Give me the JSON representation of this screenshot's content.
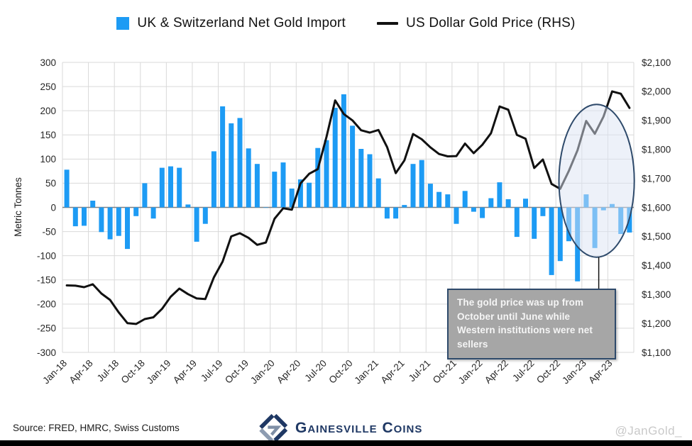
{
  "legend": {
    "bar_label": "UK & Switzerland Net Gold Import",
    "line_label": "US Dollar Gold Price (RHS)"
  },
  "colors": {
    "bar": "#1d9bf4",
    "line": "#111111",
    "grid": "#d9d9d9",
    "zero_line": "#7f7f7f",
    "ellipse_stroke": "#2e4a6b",
    "ellipse_fill": "rgba(219,228,243,0.5)",
    "callout_fill": "#a6a6a6",
    "callout_border": "#2e4a6b",
    "callout_text": "#f5f5f5",
    "brand_navy": "#1f3864",
    "brand_gray": "#8d9cb1",
    "watermark_gray": "#c9c9c9"
  },
  "chart_data": {
    "type": "bar+line",
    "title": "",
    "grid": true,
    "legend_position": "top",
    "categories": [
      "Jan-18",
      "Feb-18",
      "Mar-18",
      "Apr-18",
      "May-18",
      "Jun-18",
      "Jul-18",
      "Aug-18",
      "Sep-18",
      "Oct-18",
      "Nov-18",
      "Dec-18",
      "Jan-19",
      "Feb-19",
      "Mar-19",
      "Apr-19",
      "May-19",
      "Jun-19",
      "Jul-19",
      "Aug-19",
      "Sep-19",
      "Oct-19",
      "Nov-19",
      "Dec-19",
      "Jan-20",
      "Feb-20",
      "Mar-20",
      "Apr-20",
      "May-20",
      "Jun-20",
      "Jul-20",
      "Aug-20",
      "Sep-20",
      "Oct-20",
      "Nov-20",
      "Dec-20",
      "Jan-21",
      "Feb-21",
      "Mar-21",
      "Apr-21",
      "May-21",
      "Jun-21",
      "Jul-21",
      "Aug-21",
      "Sep-21",
      "Oct-21",
      "Nov-21",
      "Dec-21",
      "Jan-22",
      "Feb-22",
      "Mar-22",
      "Apr-22",
      "May-22",
      "Jun-22",
      "Jul-22",
      "Aug-22",
      "Sep-22",
      "Oct-22",
      "Nov-22",
      "Dec-22",
      "Jan-23",
      "Feb-23",
      "Mar-23",
      "Apr-23",
      "May-23",
      "Jun-23"
    ],
    "x_tick_labels": [
      "Jan-18",
      "Apr-18",
      "Jul-18",
      "Oct-18",
      "Jan-19",
      "Apr-19",
      "Jul-19",
      "Oct-19",
      "Jan-20",
      "Apr-20",
      "Jul-20",
      "Oct-20",
      "Jan-21",
      "Apr-21",
      "Jul-21",
      "Oct-21",
      "Jan-22",
      "Apr-22",
      "Jul-22",
      "Oct-22",
      "Jan-23",
      "Apr-23"
    ],
    "series": [
      {
        "name": "UK & Switzerland Net Gold Import",
        "type": "bar",
        "axis": "left",
        "color": "#1d9bf4",
        "values": [
          78,
          -39,
          -38,
          14,
          -51,
          -66,
          -59,
          -86,
          -18,
          50,
          -23,
          82,
          85,
          82,
          6,
          -71,
          -34,
          116,
          209,
          174,
          185,
          122,
          90,
          0,
          74,
          93,
          39,
          58,
          51,
          123,
          139,
          206,
          234,
          169,
          121,
          110,
          60,
          -23,
          -23,
          5,
          90,
          98,
          49,
          32,
          27,
          -34,
          34,
          -9,
          -22,
          19,
          52,
          17,
          -61,
          18,
          -65,
          -18,
          -140,
          -111,
          -70,
          -153,
          27,
          -84,
          -6,
          7,
          -55,
          -52
        ]
      },
      {
        "name": "US Dollar Gold Price (RHS)",
        "type": "line",
        "axis": "right",
        "color": "#111111",
        "values": [
          1331,
          1330,
          1325,
          1335,
          1303,
          1281,
          1238,
          1201,
          1198,
          1215,
          1221,
          1250,
          1292,
          1320,
          1301,
          1286,
          1284,
          1359,
          1413,
          1500,
          1511,
          1495,
          1471,
          1479,
          1561,
          1597,
          1592,
          1683,
          1716,
          1732,
          1843,
          1969,
          1922,
          1900,
          1866,
          1858,
          1867,
          1808,
          1718,
          1762,
          1853,
          1835,
          1807,
          1784,
          1776,
          1777,
          1820,
          1787,
          1816,
          1856,
          1948,
          1937,
          1850,
          1837,
          1736,
          1765,
          1681,
          1664,
          1726,
          1797,
          1898,
          1854,
          1913,
          2000,
          1992,
          1943
        ]
      }
    ],
    "left_axis": {
      "title": "Metric Tonnes",
      "min": -300,
      "max": 300,
      "step": 50,
      "tick_labels": [
        "300",
        "250",
        "200",
        "150",
        "100",
        "50",
        "0",
        "-50",
        "-100",
        "-150",
        "-200",
        "-250",
        "-300"
      ]
    },
    "right_axis": {
      "min": 1100,
      "max": 2100,
      "step": 100,
      "tick_labels": [
        "$2,100",
        "$2,000",
        "$1,900",
        "$1,800",
        "$1,700",
        "$1,600",
        "$1,500",
        "$1,400",
        "$1,300",
        "$1,200",
        "$1,100"
      ]
    },
    "highlight_ellipse": {
      "months_covered": "Oct-22 to Jun-23",
      "center_month_index": 61.2,
      "center_value_left": 55,
      "radius_months": 4.35,
      "radius_value_left": 158
    }
  },
  "annotation": {
    "text": "The gold price was up from October until June while Western institutions were net sellers"
  },
  "footer": {
    "source": "Source: FRED, HMRC, Swiss Customs",
    "brand": "Gainesville Coins",
    "watermark": "@JanGold_"
  }
}
